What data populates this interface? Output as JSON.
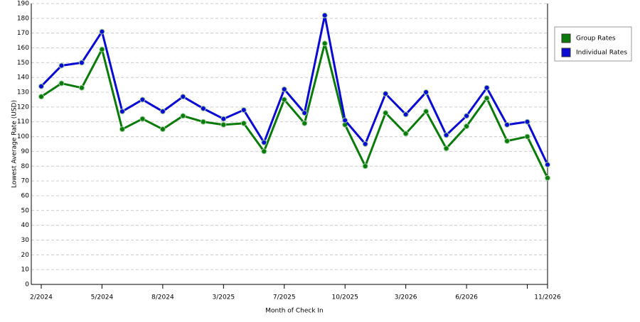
{
  "chart_data": {
    "type": "line",
    "x_label": "Month of Check In",
    "y_label": "Lowest Average Rate (USD)",
    "categories": [
      "2/2024",
      null,
      null,
      "5/2024",
      null,
      null,
      "8/2024",
      null,
      null,
      "3/2025",
      null,
      null,
      "7/2025",
      null,
      null,
      "10/2025",
      null,
      null,
      "3/2026",
      null,
      null,
      "6/2026",
      null,
      null,
      null,
      "11/2026"
    ],
    "series": [
      {
        "name": "Group Rates",
        "color": "#0a7a0a",
        "values": [
          127,
          136,
          133,
          159,
          105,
          112,
          105,
          114,
          110,
          108,
          109,
          90,
          125,
          109,
          163,
          108,
          80,
          116,
          102,
          117,
          92,
          107,
          126,
          97,
          100,
          72
        ]
      },
      {
        "name": "Individual Rates",
        "color": "#0a0ad2",
        "values": [
          134,
          148,
          150,
          171,
          117,
          125,
          117,
          127,
          119,
          112,
          118,
          96,
          132,
          116,
          182,
          111,
          95,
          129,
          115,
          130,
          101,
          114,
          133,
          108,
          110,
          81
        ]
      }
    ],
    "ylim": [
      0,
      190
    ],
    "yticks": [
      0,
      10,
      20,
      30,
      40,
      50,
      60,
      70,
      80,
      90,
      100,
      110,
      120,
      130,
      140,
      150,
      160,
      170,
      180,
      190
    ],
    "grid": true,
    "legend": "right"
  }
}
